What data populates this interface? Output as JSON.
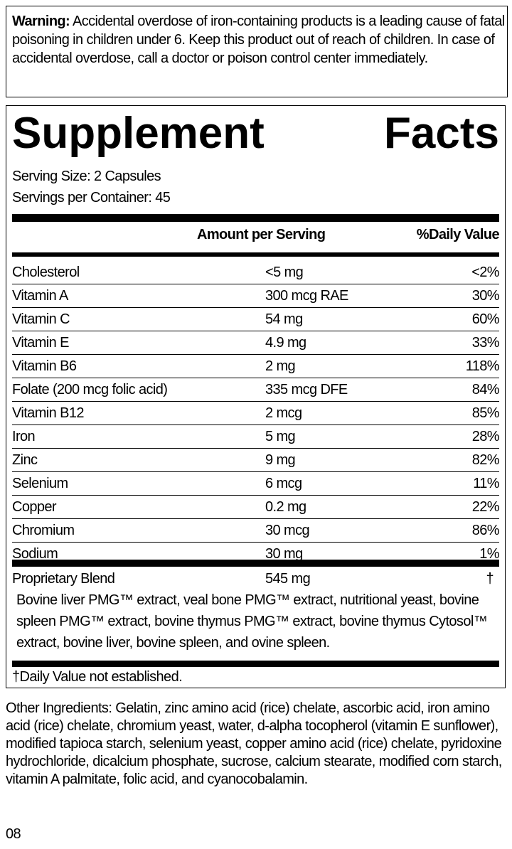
{
  "warning": {
    "label": "Warning:",
    "text": " Accidental overdose of iron-containing products is a leading cause of fatal poisoning in children under 6. Keep this product out of reach of children. In case of accidental overdose, call a doctor or poison control center immediately."
  },
  "facts": {
    "title_word1": "Supplement",
    "title_word2": "Facts",
    "serving_size": "Serving Size: 2 Capsules",
    "servings_per_container": "Servings per Container: 45",
    "header_amount": "Amount per Serving",
    "header_dv": "%Daily Value",
    "rows": [
      {
        "name": "Cholesterol",
        "amount": "<5 mg",
        "dv": "<2%"
      },
      {
        "name": "Vitamin A",
        "amount": "300 mcg RAE",
        "dv": "30%"
      },
      {
        "name": "Vitamin C",
        "amount": "54 mg",
        "dv": "60%"
      },
      {
        "name": "Vitamin E",
        "amount": "4.9 mg",
        "dv": "33%"
      },
      {
        "name": "Vitamin B6",
        "amount": "2 mg",
        "dv": "118%"
      },
      {
        "name": "Folate (200 mcg folic acid)",
        "amount": "335 mcg DFE",
        "dv": "84%"
      },
      {
        "name": "Vitamin B12",
        "amount": "2 mcg",
        "dv": "85%"
      },
      {
        "name": "Iron",
        "amount": "5 mg",
        "dv": "28%"
      },
      {
        "name": "Zinc",
        "amount": "9 mg",
        "dv": "82%"
      },
      {
        "name": "Selenium",
        "amount": "6 mcg",
        "dv": "11%"
      },
      {
        "name": "Copper",
        "amount": "0.2 mg",
        "dv": "22%"
      },
      {
        "name": "Chromium",
        "amount": "30 mcg",
        "dv": "86%"
      },
      {
        "name": "Sodium",
        "amount": "30 mg",
        "dv": "1%"
      }
    ],
    "blend": {
      "name": "Proprietary Blend",
      "amount": "545 mg",
      "dv": "†",
      "description": "Bovine liver PMG™ extract, veal bone PMG™ extract, nutritional yeast, bovine spleen PMG™ extract, bovine thymus PMG™ extract, bovine thymus Cytosol™ extract, bovine liver, bovine spleen, and ovine spleen."
    },
    "footnote": "†Daily Value not established."
  },
  "other_ingredients": "Other Ingredients: Gelatin, zinc amino acid (rice) chelate, ascorbic acid, iron amino acid (rice) chelate, chromium yeast, water, d-alpha tocopherol (vitamin E sunflower), modified tapioca starch, selenium yeast, copper amino acid (rice) chelate, pyridoxine hydrochloride, dicalcium phosphate, sucrose, calcium stearate, modified corn starch, vitamin A palmitate,  folic acid, and cyanocobalamin.",
  "code": "08"
}
